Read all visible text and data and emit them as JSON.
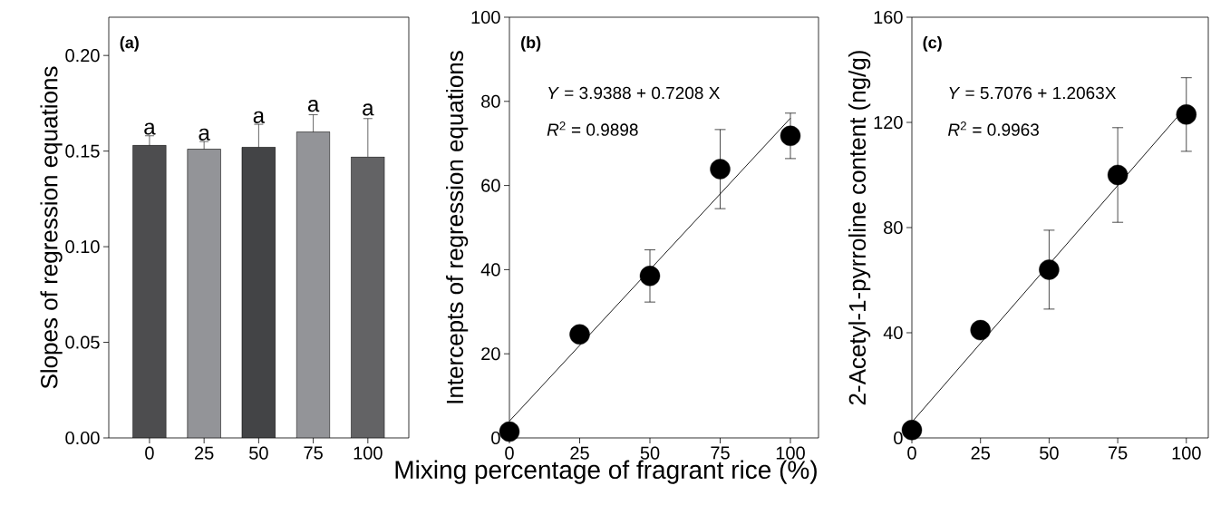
{
  "chart_data": [
    {
      "type": "bar",
      "title": "(a)",
      "ylabel": "Slopes of regression equations",
      "categories": [
        "0",
        "25",
        "50",
        "75",
        "100"
      ],
      "values": [
        0.153,
        0.151,
        0.152,
        0.16,
        0.147
      ],
      "errors": [
        0.005,
        0.004,
        0.012,
        0.009,
        0.02
      ],
      "colors": [
        "#4d4d4f",
        "#939498",
        "#434446",
        "#939498",
        "#636365"
      ],
      "ylim": [
        0,
        0.22
      ],
      "yticks": [
        {
          "value": 0,
          "label": "0.00"
        },
        {
          "value": 0.05,
          "label": "0.05"
        },
        {
          "value": 0.1,
          "label": "0.10"
        },
        {
          "value": 0.15,
          "label": "0.15"
        },
        {
          "value": 0.2,
          "label": "0.20"
        }
      ],
      "annotations": [
        {
          "text": "a",
          "x": "0",
          "y": 0.158
        },
        {
          "text": "a",
          "x": "25",
          "y": 0.155
        },
        {
          "text": "a",
          "x": "50",
          "y": 0.164
        },
        {
          "text": "a",
          "x": "75",
          "y": 0.17
        },
        {
          "text": "a",
          "x": "100",
          "y": 0.168
        }
      ]
    },
    {
      "type": "scatter",
      "title": "(b)",
      "ylabel": "Intercepts of regression equations",
      "xlabel": "Mixing percentage of fragrant rice (%)",
      "series": [
        {
          "type": "scatter",
          "color": "#000000",
          "marker": "circle",
          "x": [
            0,
            25,
            50,
            75,
            100
          ],
          "values": [
            1.5,
            24.6,
            38.5,
            63.9,
            71.8
          ],
          "errors": [
            null,
            1.8,
            6.2,
            9.4,
            5.4
          ]
        },
        {
          "type": "line",
          "color": "#000000",
          "marker": "none",
          "line_style": "solid",
          "x": [
            0,
            100
          ],
          "values": [
            4,
            76
          ]
        }
      ],
      "xlim": [
        0,
        110
      ],
      "xticks": [
        0,
        25,
        50,
        75,
        100
      ],
      "ylim": [
        0,
        100
      ],
      "yticks": [
        0,
        20,
        40,
        60,
        80,
        100
      ],
      "annotations": [
        "*Y* = 3.9388 + 0.7208 X",
        "*R*$^{2}$ = 0.9898"
      ]
    },
    {
      "type": "scatter",
      "title": "(c)",
      "ylabel": "2-Acetyl-1-pyrroline content (ng/g)",
      "series": [
        {
          "type": "scatter",
          "color": "#000000",
          "marker": "circle",
          "x": [
            0,
            25,
            50,
            75,
            100
          ],
          "values": [
            3,
            41,
            64,
            100,
            123
          ],
          "errors": [
            null,
            3,
            15,
            18,
            14
          ]
        },
        {
          "type": "line",
          "color": "#000000",
          "marker": "none",
          "line_style": "solid",
          "x": [
            0,
            100
          ],
          "values": [
            6,
            126
          ]
        }
      ],
      "xlim": [
        0,
        108
      ],
      "xticks": [
        0,
        25,
        50,
        75,
        100
      ],
      "ylim": [
        0,
        160
      ],
      "yticks": [
        0,
        40,
        80,
        120,
        160
      ],
      "annotations": [
        "*Y* = 5.7076 + 1.2063X",
        "*R*$^{2}$ = 0.9963"
      ]
    }
  ]
}
